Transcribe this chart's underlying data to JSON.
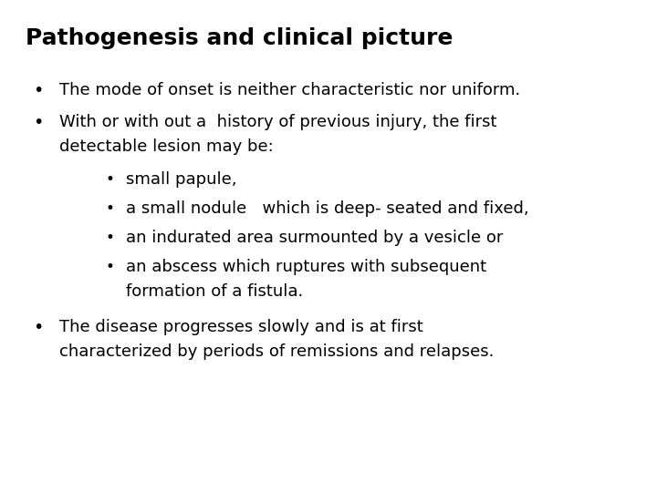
{
  "title": "Pathogenesis and clinical picture",
  "title_fontsize": 18,
  "body_fontsize": 13,
  "background_color": "#ffffff",
  "text_color": "#000000",
  "bullet1": "The mode of onset is neither characteristic nor uniform.",
  "bullet2_line1": "With or with out a  history of previous injury, the first",
  "bullet2_line2": "detectable lesion may be:",
  "sub_bullet1": "small papule,",
  "sub_bullet2": "a small nodule   which is deep- seated and fixed,",
  "sub_bullet3": "an indurated area surmounted by a vesicle or",
  "sub_bullet4_line1": "an abscess which ruptures with subsequent",
  "sub_bullet4_line2": "formation of a fistula.",
  "bullet3_line1": "The disease progresses slowly and is at first",
  "bullet3_line2": "characterized by periods of remissions and relapses.",
  "bullet_sym": "•"
}
